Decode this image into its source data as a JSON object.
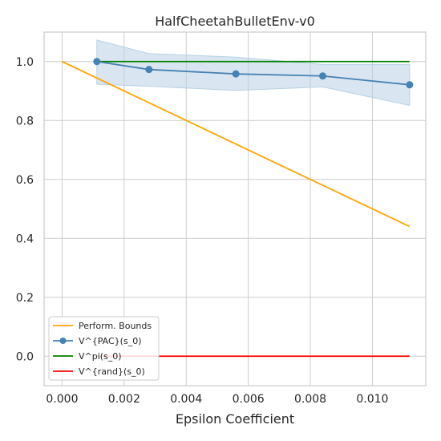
{
  "chart_data": {
    "type": "line",
    "title": "HalfCheetahBulletEnv-v0",
    "xlabel": "Epsilon Coefficient",
    "ylabel": "",
    "xlim": [
      -0.00058,
      0.01172
    ],
    "ylim": [
      -0.1,
      1.1
    ],
    "xticks": [
      0.0,
      0.002,
      0.004,
      0.006,
      0.008,
      0.01
    ],
    "xtick_labels": [
      "0.000",
      "0.002",
      "0.004",
      "0.006",
      "0.008",
      "0.010"
    ],
    "yticks": [
      0.0,
      0.2,
      0.4,
      0.6,
      0.8,
      1.0
    ],
    "ytick_labels": [
      "0.0",
      "0.2",
      "0.4",
      "0.6",
      "0.8",
      "1.0"
    ],
    "grid": true,
    "legend_position": "lower-left",
    "series": [
      {
        "name": "Perform. Bounds",
        "color": "#ffa500",
        "marker": false,
        "x": [
          0.0,
          0.0112
        ],
        "y": [
          1.0,
          0.44
        ]
      },
      {
        "name": "V^{PAC}(s_0)",
        "color": "#4682b4",
        "marker": true,
        "x": [
          0.00112,
          0.0028,
          0.0056,
          0.0084,
          0.0112
        ],
        "y": [
          1.0,
          0.973,
          0.958,
          0.951,
          0.921
        ],
        "band_upper": [
          1.073,
          1.027,
          1.015,
          0.99,
          0.99
        ],
        "band_lower": [
          0.923,
          0.916,
          0.902,
          0.914,
          0.851
        ],
        "band_color": "#b3cde3"
      },
      {
        "name": "V^pi(s_0)",
        "color": "#008000",
        "marker": false,
        "x": [
          0.00112,
          0.0112
        ],
        "y": [
          1.0,
          1.0
        ]
      },
      {
        "name": "V^{rand}(s_0)",
        "color": "#ff0000",
        "marker": false,
        "x": [
          0.00112,
          0.0112
        ],
        "y": [
          0.0,
          0.0
        ]
      }
    ]
  }
}
